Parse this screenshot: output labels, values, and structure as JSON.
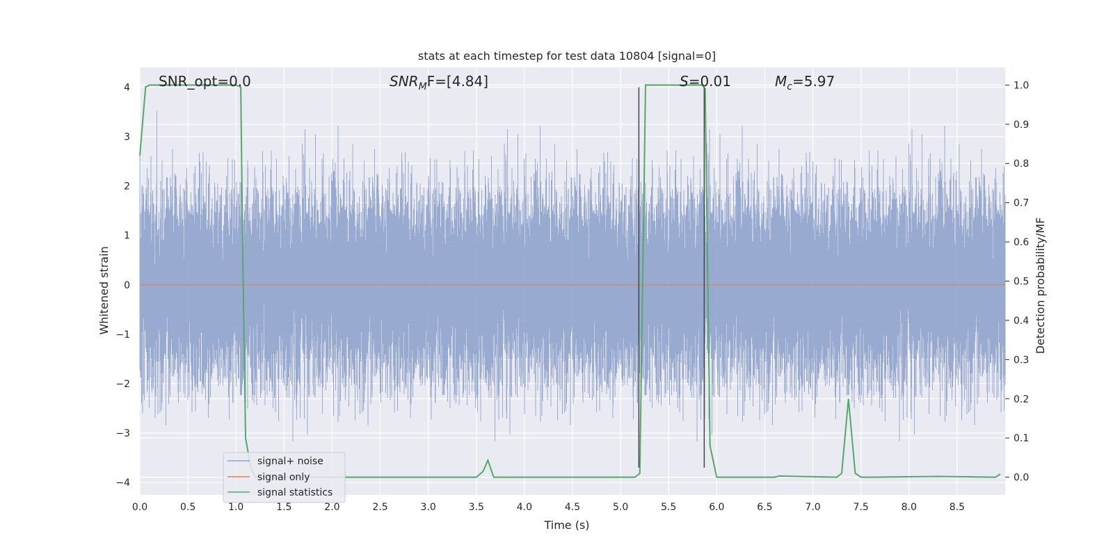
{
  "chart_data": {
    "type": "line",
    "title": "stats at each timestep for test data 10804 [signal=0]",
    "xlabel": "Time (s)",
    "ylabel": "Whitened strain",
    "y2label": "Detection probability/MF",
    "xlim": [
      0.0,
      9.0
    ],
    "ylim": [
      -4.25,
      4.4
    ],
    "y2lim": [
      -0.045,
      1.045
    ],
    "x_ticks": [
      "0.0",
      "0.5",
      "1.0",
      "1.5",
      "2.0",
      "2.5",
      "3.0",
      "3.5",
      "4.0",
      "4.5",
      "5.0",
      "5.5",
      "6.0",
      "6.5",
      "7.0",
      "7.5",
      "8.0",
      "8.5"
    ],
    "y_ticks": [
      "4",
      "3",
      "2",
      "1",
      "0",
      "−1",
      "−2",
      "−3",
      "−4"
    ],
    "y2_ticks": [
      "1.0",
      "0.9",
      "0.8",
      "0.7",
      "0.6",
      "0.5",
      "0.4",
      "0.3",
      "0.2",
      "0.1",
      "0.0"
    ],
    "grid": true,
    "legend_position": "lower-left",
    "annotations": {
      "snr_opt": "SNR_opt=0.0",
      "snr_mf_main": "SNR",
      "snr_mf_sub": "M",
      "snr_mf_rest": "F=[4.84]",
      "s_main": "S",
      "s_rest": "=0.01",
      "mc_main": "M",
      "mc_sub": "c",
      "mc_rest": "=5.97"
    },
    "series": [
      {
        "name": "signal+ noise",
        "color": "#8fa3cc",
        "description_free": true,
        "noise_std": 1.0,
        "sample_rate": 4096
      },
      {
        "name": "signal only",
        "color": "#dd8452",
        "y": 0
      },
      {
        "name": "signal statistics",
        "color": "#55a868",
        "x": [
          0.0,
          0.06,
          0.1,
          0.15,
          1.0,
          1.05,
          1.07,
          1.1,
          1.15,
          1.2,
          3.5,
          3.57,
          3.62,
          3.68,
          3.8,
          5.15,
          5.2,
          5.26,
          5.3,
          5.85,
          5.88,
          5.93,
          6.0,
          6.6,
          6.65,
          7.25,
          7.3,
          7.37,
          7.44,
          7.5,
          7.6,
          8.3,
          8.9,
          8.95
        ],
        "y": [
          0.82,
          0.995,
          1.0,
          1.0,
          1.0,
          0.995,
          0.58,
          0.1,
          0.03,
          0.0,
          0.0,
          0.015,
          0.043,
          0.0,
          0.0,
          0.0,
          0.01,
          1.0,
          1.0,
          1.0,
          0.99,
          0.08,
          0.0,
          0.0,
          0.003,
          0.0,
          0.01,
          0.2,
          0.01,
          0.0,
          0.0,
          0.002,
          0.0,
          0.008
        ]
      }
    ],
    "vlines": [
      {
        "x": 5.19,
        "y_from": -3.7,
        "y_to": 4.0,
        "color": "#444444"
      },
      {
        "x": 5.87,
        "y_from": -3.7,
        "y_to": 4.0,
        "color": "#444444"
      }
    ]
  }
}
